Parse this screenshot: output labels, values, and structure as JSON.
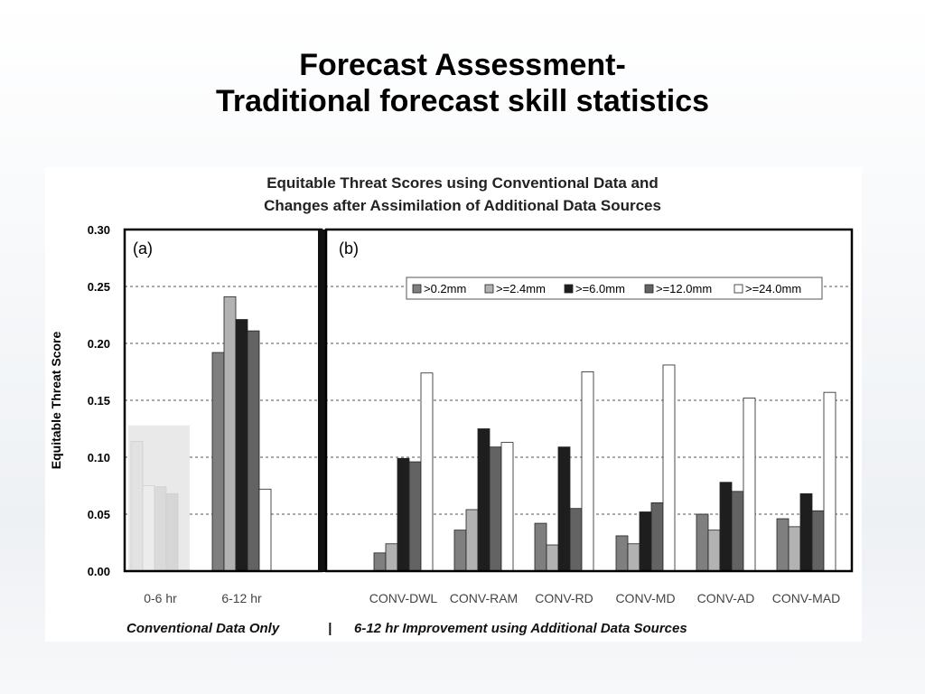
{
  "slide": {
    "title_line1": "Forecast Assessment-",
    "title_line2": "Traditional forecast skill statistics"
  },
  "chart_data": {
    "type": "bar",
    "title_line1": "Equitable Threat Scores using Conventional Data and",
    "title_line2": "Changes after Assimilation of Additional Data Sources",
    "ylabel": "Equitable Threat Score",
    "ylim": [
      0,
      0.3
    ],
    "yticks": [
      "0.00",
      "0.05",
      "0.10",
      "0.15",
      "0.20",
      "0.25",
      "0.30"
    ],
    "grid": true,
    "legend_position": "top-right",
    "series_names": [
      ">0.2mm",
      ">=2.4mm",
      ">=6.0mm",
      ">=12.0mm",
      ">=24.0mm"
    ],
    "series_colors": [
      "#7f7f7f",
      "#b2b2b2",
      "#1e1e1e",
      "#636363",
      "#ffffff"
    ],
    "panels": [
      {
        "label": "(a)",
        "categories": [
          "0-6 hr",
          "6-12 hr"
        ],
        "values": [
          [
            0.114,
            0.075,
            0.074,
            0.068,
            0.001
          ],
          [
            0.192,
            0.241,
            0.221,
            0.211,
            0.072
          ]
        ],
        "faded_categories": [
          "0-6 hr"
        ]
      },
      {
        "label": "(b)",
        "categories": [
          "CONV-DWL",
          "CONV-RAM",
          "CONV-RD",
          "CONV-MD",
          "CONV-AD",
          "CONV-MAD"
        ],
        "values": [
          [
            0.016,
            0.024,
            0.099,
            0.096,
            0.174
          ],
          [
            0.036,
            0.054,
            0.125,
            0.109,
            0.113
          ],
          [
            0.042,
            0.023,
            0.109,
            0.055,
            0.175
          ],
          [
            0.031,
            0.024,
            0.052,
            0.06,
            0.181
          ],
          [
            0.05,
            0.036,
            0.078,
            0.07,
            0.152
          ],
          [
            0.046,
            0.039,
            0.068,
            0.053,
            0.157
          ]
        ]
      }
    ],
    "footer_left": "Conventional Data Only",
    "footer_sep": "|",
    "footer_right": "6-12 hr Improvement using Additional Data Sources"
  }
}
